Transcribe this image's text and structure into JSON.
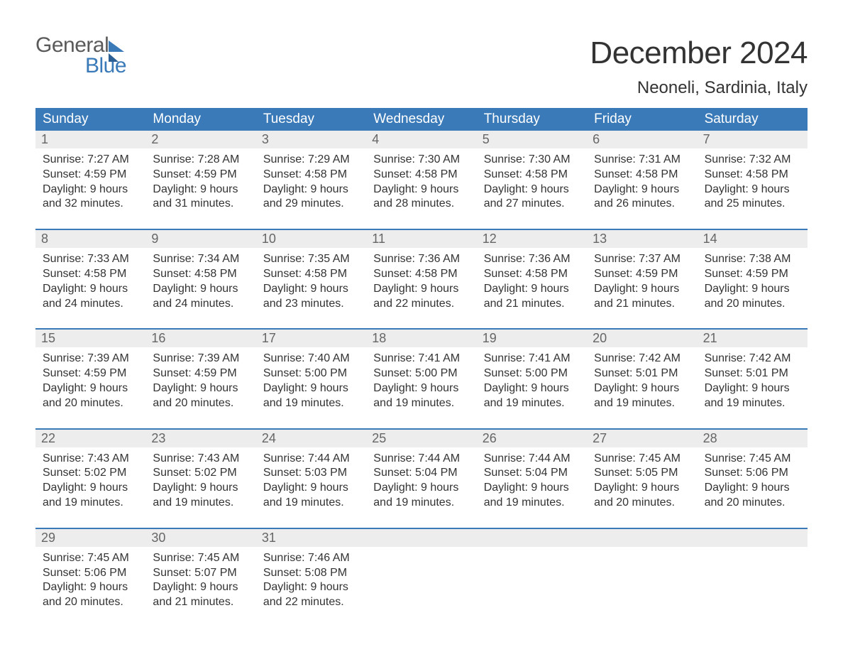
{
  "logo": {
    "word1": "General",
    "word2": "Blue"
  },
  "title": "December 2024",
  "location": "Neoneli, Sardinia, Italy",
  "header_bg": "#3a7ab8",
  "header_fg": "#ffffff",
  "daynum_bg": "#ededed",
  "border_color": "#3a7ab8",
  "text_color": "#333333",
  "dayname_fontsize": 19,
  "title_fontsize": 44,
  "location_fontsize": 24,
  "body_fontsize": 16,
  "day_names": [
    "Sunday",
    "Monday",
    "Tuesday",
    "Wednesday",
    "Thursday",
    "Friday",
    "Saturday"
  ],
  "weeks": [
    [
      {
        "n": "1",
        "sr": "7:27 AM",
        "ss": "4:59 PM",
        "dl": "9 hours and 32 minutes."
      },
      {
        "n": "2",
        "sr": "7:28 AM",
        "ss": "4:59 PM",
        "dl": "9 hours and 31 minutes."
      },
      {
        "n": "3",
        "sr": "7:29 AM",
        "ss": "4:58 PM",
        "dl": "9 hours and 29 minutes."
      },
      {
        "n": "4",
        "sr": "7:30 AM",
        "ss": "4:58 PM",
        "dl": "9 hours and 28 minutes."
      },
      {
        "n": "5",
        "sr": "7:30 AM",
        "ss": "4:58 PM",
        "dl": "9 hours and 27 minutes."
      },
      {
        "n": "6",
        "sr": "7:31 AM",
        "ss": "4:58 PM",
        "dl": "9 hours and 26 minutes."
      },
      {
        "n": "7",
        "sr": "7:32 AM",
        "ss": "4:58 PM",
        "dl": "9 hours and 25 minutes."
      }
    ],
    [
      {
        "n": "8",
        "sr": "7:33 AM",
        "ss": "4:58 PM",
        "dl": "9 hours and 24 minutes."
      },
      {
        "n": "9",
        "sr": "7:34 AM",
        "ss": "4:58 PM",
        "dl": "9 hours and 24 minutes."
      },
      {
        "n": "10",
        "sr": "7:35 AM",
        "ss": "4:58 PM",
        "dl": "9 hours and 23 minutes."
      },
      {
        "n": "11",
        "sr": "7:36 AM",
        "ss": "4:58 PM",
        "dl": "9 hours and 22 minutes."
      },
      {
        "n": "12",
        "sr": "7:36 AM",
        "ss": "4:58 PM",
        "dl": "9 hours and 21 minutes."
      },
      {
        "n": "13",
        "sr": "7:37 AM",
        "ss": "4:59 PM",
        "dl": "9 hours and 21 minutes."
      },
      {
        "n": "14",
        "sr": "7:38 AM",
        "ss": "4:59 PM",
        "dl": "9 hours and 20 minutes."
      }
    ],
    [
      {
        "n": "15",
        "sr": "7:39 AM",
        "ss": "4:59 PM",
        "dl": "9 hours and 20 minutes."
      },
      {
        "n": "16",
        "sr": "7:39 AM",
        "ss": "4:59 PM",
        "dl": "9 hours and 20 minutes."
      },
      {
        "n": "17",
        "sr": "7:40 AM",
        "ss": "5:00 PM",
        "dl": "9 hours and 19 minutes."
      },
      {
        "n": "18",
        "sr": "7:41 AM",
        "ss": "5:00 PM",
        "dl": "9 hours and 19 minutes."
      },
      {
        "n": "19",
        "sr": "7:41 AM",
        "ss": "5:00 PM",
        "dl": "9 hours and 19 minutes."
      },
      {
        "n": "20",
        "sr": "7:42 AM",
        "ss": "5:01 PM",
        "dl": "9 hours and 19 minutes."
      },
      {
        "n": "21",
        "sr": "7:42 AM",
        "ss": "5:01 PM",
        "dl": "9 hours and 19 minutes."
      }
    ],
    [
      {
        "n": "22",
        "sr": "7:43 AM",
        "ss": "5:02 PM",
        "dl": "9 hours and 19 minutes."
      },
      {
        "n": "23",
        "sr": "7:43 AM",
        "ss": "5:02 PM",
        "dl": "9 hours and 19 minutes."
      },
      {
        "n": "24",
        "sr": "7:44 AM",
        "ss": "5:03 PM",
        "dl": "9 hours and 19 minutes."
      },
      {
        "n": "25",
        "sr": "7:44 AM",
        "ss": "5:04 PM",
        "dl": "9 hours and 19 minutes."
      },
      {
        "n": "26",
        "sr": "7:44 AM",
        "ss": "5:04 PM",
        "dl": "9 hours and 19 minutes."
      },
      {
        "n": "27",
        "sr": "7:45 AM",
        "ss": "5:05 PM",
        "dl": "9 hours and 20 minutes."
      },
      {
        "n": "28",
        "sr": "7:45 AM",
        "ss": "5:06 PM",
        "dl": "9 hours and 20 minutes."
      }
    ],
    [
      {
        "n": "29",
        "sr": "7:45 AM",
        "ss": "5:06 PM",
        "dl": "9 hours and 20 minutes."
      },
      {
        "n": "30",
        "sr": "7:45 AM",
        "ss": "5:07 PM",
        "dl": "9 hours and 21 minutes."
      },
      {
        "n": "31",
        "sr": "7:46 AM",
        "ss": "5:08 PM",
        "dl": "9 hours and 22 minutes."
      },
      null,
      null,
      null,
      null
    ]
  ],
  "labels": {
    "sunrise": "Sunrise:",
    "sunset": "Sunset:",
    "daylight": "Daylight:"
  }
}
